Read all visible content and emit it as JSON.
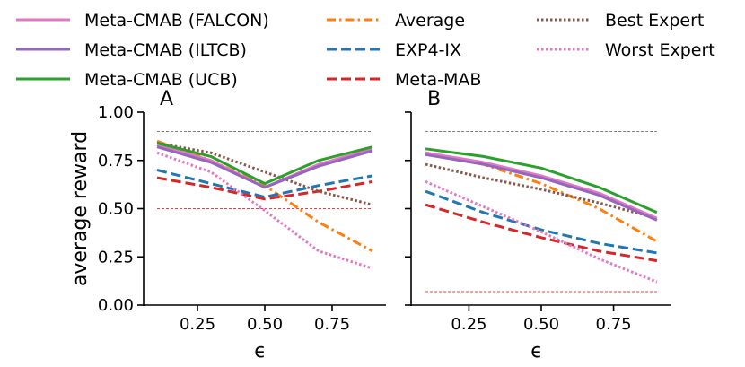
{
  "chart_data": {
    "type": "line",
    "ylabel": "average reward",
    "xlabel": "ϵ",
    "ylim": [
      0,
      1
    ],
    "xlim": [
      0.05,
      0.95
    ],
    "x_ticks": [
      0.25,
      0.5,
      0.75
    ],
    "x_tick_labels": [
      "0.25",
      "0.50",
      "0.75"
    ],
    "y_ticks": [
      0,
      0.25,
      0.5,
      0.75,
      1.0
    ],
    "y_tick_labels": [
      "0.00",
      "0.25",
      "0.50",
      "0.75",
      "1.00"
    ],
    "legend": {
      "placement": "top",
      "entries": [
        {
          "name": "Meta-CMAB (FALCON)",
          "color": "#e377c2",
          "dash": "solid"
        },
        {
          "name": "Meta-CMAB (ILTCB)",
          "color": "#9467bd",
          "dash": "solid"
        },
        {
          "name": "Meta-CMAB (UCB)",
          "color": "#2ca02c",
          "dash": "solid"
        },
        {
          "name": "Average",
          "color": "#ff7f0e",
          "dash": "dashdot"
        },
        {
          "name": "EXP4-IX",
          "color": "#1f77b4",
          "dash": "dashed"
        },
        {
          "name": "Meta-MAB",
          "color": "#d62728",
          "dash": "dashed"
        },
        {
          "name": "Best Expert",
          "color": "#8c564b",
          "dash": "dotted"
        },
        {
          "name": "Worst Expert",
          "color": "#e377c2",
          "dash": "dotted"
        }
      ]
    },
    "panels": [
      {
        "label": "A",
        "x": [
          0.1,
          0.3,
          0.5,
          0.7,
          0.9
        ],
        "reference_lines": [
          {
            "y": 0.9,
            "color": "#808080"
          },
          {
            "y": 0.5,
            "color": "#e8413a"
          }
        ],
        "series": [
          {
            "name": "Average",
            "values": [
              0.85,
              0.75,
              0.62,
              0.43,
              0.28
            ]
          },
          {
            "name": "EXP4-IX",
            "values": [
              0.7,
              0.63,
              0.56,
              0.62,
              0.67
            ]
          },
          {
            "name": "Meta-MAB",
            "values": [
              0.66,
              0.61,
              0.55,
              0.59,
              0.64
            ]
          },
          {
            "name": "Best Expert",
            "values": [
              0.84,
              0.79,
              0.69,
              0.59,
              0.52
            ]
          },
          {
            "name": "Worst Expert",
            "values": [
              0.79,
              0.69,
              0.49,
              0.28,
              0.19
            ]
          },
          {
            "name": "Meta-CMAB (FALCON)",
            "values": [
              0.83,
              0.75,
              0.61,
              0.73,
              0.81
            ]
          },
          {
            "name": "Meta-CMAB (ILTCB)",
            "values": [
              0.82,
              0.74,
              0.61,
              0.72,
              0.8
            ]
          },
          {
            "name": "Meta-CMAB (UCB)",
            "values": [
              0.84,
              0.77,
              0.63,
              0.75,
              0.82
            ]
          }
        ]
      },
      {
        "label": "B",
        "x": [
          0.1,
          0.3,
          0.5,
          0.7,
          0.9
        ],
        "reference_lines": [
          {
            "y": 0.9,
            "color": "#808080"
          },
          {
            "y": 0.07,
            "color": "#e8413a"
          }
        ],
        "series": [
          {
            "name": "Average",
            "values": [
              0.79,
              0.73,
              0.63,
              0.5,
              0.33
            ]
          },
          {
            "name": "EXP4-IX",
            "values": [
              0.59,
              0.48,
              0.39,
              0.32,
              0.27
            ]
          },
          {
            "name": "Meta-MAB",
            "values": [
              0.52,
              0.43,
              0.35,
              0.28,
              0.23
            ]
          },
          {
            "name": "Best Expert",
            "values": [
              0.73,
              0.66,
              0.6,
              0.53,
              0.45
            ]
          },
          {
            "name": "Worst Expert",
            "values": [
              0.64,
              0.51,
              0.38,
              0.24,
              0.12
            ]
          },
          {
            "name": "Meta-CMAB (FALCON)",
            "values": [
              0.79,
              0.74,
              0.67,
              0.58,
              0.45
            ]
          },
          {
            "name": "Meta-CMAB (ILTCB)",
            "values": [
              0.78,
              0.73,
              0.66,
              0.57,
              0.44
            ]
          },
          {
            "name": "Meta-CMAB (UCB)",
            "values": [
              0.81,
              0.77,
              0.71,
              0.61,
              0.48
            ]
          }
        ]
      }
    ]
  }
}
